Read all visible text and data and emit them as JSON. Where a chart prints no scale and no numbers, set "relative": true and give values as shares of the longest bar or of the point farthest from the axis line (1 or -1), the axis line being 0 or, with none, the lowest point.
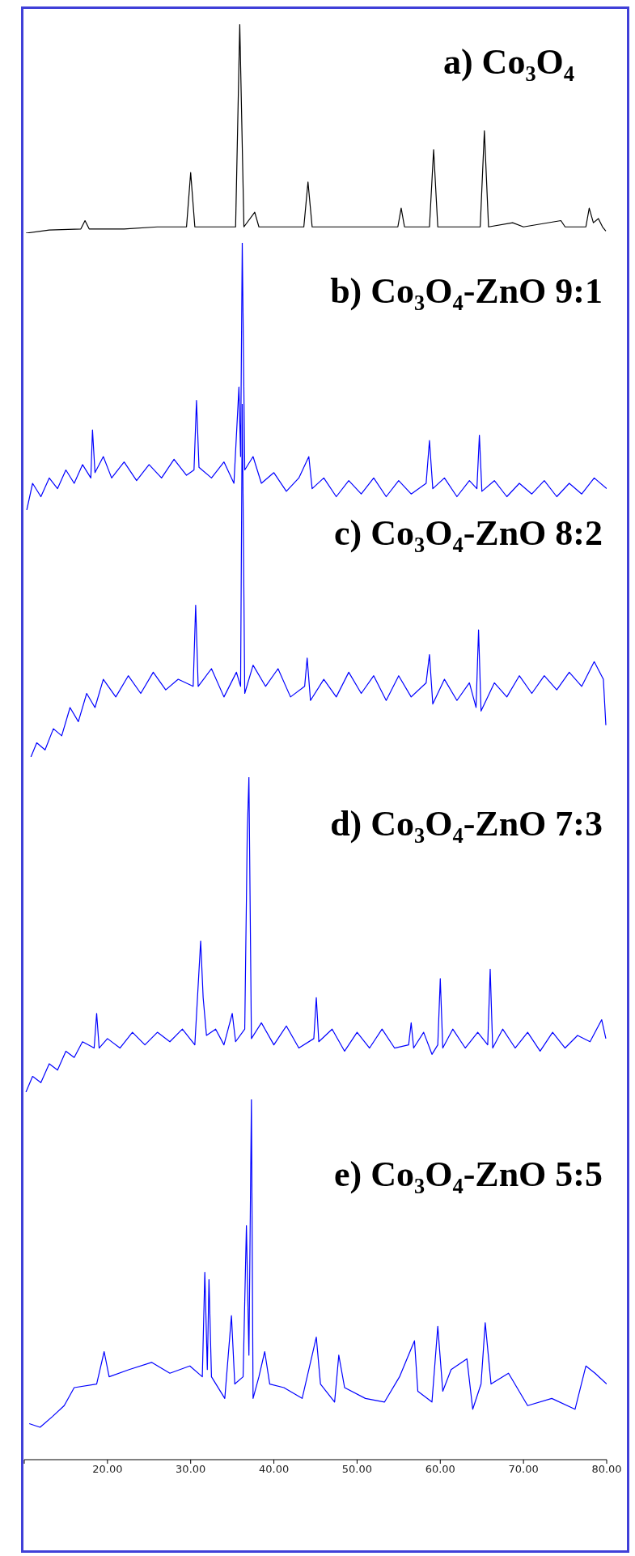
{
  "chart_data": [
    {
      "type": "line",
      "title": "a) Co₃O₄",
      "relative": true,
      "color": "#000000",
      "xlim": [
        10,
        80
      ],
      "tick_labels": false,
      "x": [
        10.2,
        13,
        16.8,
        17.3,
        17.8,
        22,
        26,
        29.5,
        30.0,
        30.5,
        35.4,
        35.9,
        36.4,
        37.7,
        38.2,
        43.6,
        44.1,
        44.6,
        50,
        54.9,
        55.3,
        55.7,
        58.7,
        59.2,
        59.7,
        64.8,
        65.3,
        65.8,
        68.7,
        70,
        74.5,
        75,
        77.5,
        77.9,
        78.4,
        79.0,
        79.5,
        79.9
      ],
      "values": [
        0,
        0.015,
        0.02,
        0.06,
        0.02,
        0.02,
        0.03,
        0.03,
        0.29,
        0.03,
        0.03,
        1,
        0.03,
        0.1,
        0.03,
        0.03,
        0.245,
        0.03,
        0.03,
        0.03,
        0.12,
        0.03,
        0.03,
        0.4,
        0.03,
        0.03,
        0.49,
        0.03,
        0.05,
        0.03,
        0.06,
        0.03,
        0.03,
        0.12,
        0.05,
        0.07,
        0.03,
        0.01
      ]
    },
    {
      "type": "line",
      "title": "b) Co₃O₄-ZnO 9:1",
      "relative": true,
      "color": "#0000ff",
      "xlim": [
        10,
        80
      ],
      "tick_labels": false,
      "x": [
        10.3,
        11,
        12,
        13,
        14,
        15,
        16,
        17,
        18.0,
        18.2,
        18.5,
        19.5,
        20.5,
        22,
        23.5,
        25,
        26.5,
        28,
        29.5,
        30.4,
        30.7,
        31.0,
        32.5,
        34,
        35.2,
        35.8,
        36.0,
        36.2,
        36.5,
        37.5,
        38.5,
        40,
        41.5,
        43,
        44.2,
        44.6,
        46,
        47.5,
        49,
        50.5,
        52,
        53.5,
        55,
        56.5,
        58.3,
        58.7,
        59.1,
        60.5,
        62,
        63.5,
        64.4,
        64.7,
        65,
        66.5,
        68,
        69.5,
        71,
        72.5,
        74,
        75.5,
        77,
        78.5,
        80
      ],
      "values": [
        0,
        0.1,
        0.05,
        0.12,
        0.08,
        0.15,
        0.1,
        0.17,
        0.12,
        0.3,
        0.14,
        0.2,
        0.12,
        0.18,
        0.11,
        0.17,
        0.12,
        0.19,
        0.13,
        0.15,
        0.41,
        0.16,
        0.12,
        0.18,
        0.1,
        0.46,
        0.2,
        1,
        0.15,
        0.2,
        0.1,
        0.14,
        0.07,
        0.12,
        0.2,
        0.08,
        0.12,
        0.05,
        0.11,
        0.06,
        0.12,
        0.05,
        0.11,
        0.06,
        0.1,
        0.26,
        0.08,
        0.12,
        0.05,
        0.11,
        0.08,
        0.28,
        0.07,
        0.11,
        0.05,
        0.1,
        0.06,
        0.11,
        0.05,
        0.1,
        0.06,
        0.12,
        0.08
      ]
    },
    {
      "type": "line",
      "title": "c) Co₃O₄-ZnO 8:2",
      "relative": true,
      "color": "#0000ff",
      "xlim": [
        10,
        80
      ],
      "tick_labels": false,
      "x": [
        10.8,
        11.5,
        12.5,
        13.5,
        14.5,
        15.5,
        16.5,
        17.5,
        18.5,
        19.5,
        21,
        22.5,
        24,
        25.5,
        27,
        28.5,
        30.3,
        30.6,
        30.9,
        32.5,
        34,
        35.5,
        36.0,
        36.2,
        36.5,
        37.5,
        39,
        40.5,
        42,
        43.7,
        44,
        44.4,
        46,
        47.5,
        49,
        50.5,
        52,
        53.5,
        55,
        56.5,
        58.3,
        58.7,
        59.1,
        60.5,
        62,
        63.5,
        64.3,
        64.6,
        64.9,
        66.5,
        68,
        69.5,
        71,
        72.5,
        74,
        75.5,
        77,
        78.5,
        79.6,
        79.9
      ],
      "values": [
        0,
        0.04,
        0.02,
        0.08,
        0.06,
        0.14,
        0.1,
        0.18,
        0.14,
        0.22,
        0.17,
        0.23,
        0.18,
        0.24,
        0.19,
        0.22,
        0.2,
        0.43,
        0.2,
        0.25,
        0.17,
        0.24,
        0.2,
        1,
        0.18,
        0.26,
        0.2,
        0.25,
        0.17,
        0.2,
        0.28,
        0.16,
        0.22,
        0.17,
        0.24,
        0.18,
        0.23,
        0.16,
        0.23,
        0.17,
        0.21,
        0.29,
        0.15,
        0.22,
        0.16,
        0.21,
        0.14,
        0.36,
        0.13,
        0.21,
        0.17,
        0.23,
        0.18,
        0.23,
        0.19,
        0.24,
        0.2,
        0.27,
        0.22,
        0.09
      ]
    },
    {
      "type": "line",
      "title": "d) Co₃O₄-ZnO 7:3",
      "relative": true,
      "color": "#0000ff",
      "xlim": [
        10,
        80
      ],
      "tick_labels": false,
      "x": [
        10.2,
        11,
        12,
        13,
        14,
        15,
        16,
        17,
        18.4,
        18.7,
        19,
        20,
        21.5,
        23,
        24.5,
        26,
        27.5,
        29,
        30.5,
        31.2,
        31.5,
        31.9,
        33,
        34,
        35,
        35.4,
        36.5,
        36.8,
        37.0,
        37.3,
        38.5,
        40,
        41.5,
        43,
        44.8,
        45.1,
        45.4,
        47,
        48.5,
        50,
        51.5,
        53,
        54.5,
        56.2,
        56.5,
        56.8,
        58,
        59,
        59.7,
        60.0,
        60.3,
        61.5,
        63,
        64.5,
        65.7,
        66.0,
        66.3,
        67.5,
        69,
        70.5,
        72,
        73.5,
        75,
        76.5,
        78,
        79.4,
        79.9
      ],
      "values": [
        0,
        0.05,
        0.03,
        0.09,
        0.07,
        0.13,
        0.11,
        0.16,
        0.14,
        0.25,
        0.14,
        0.17,
        0.14,
        0.19,
        0.15,
        0.19,
        0.16,
        0.2,
        0.15,
        0.48,
        0.3,
        0.18,
        0.2,
        0.15,
        0.25,
        0.16,
        0.2,
        0.82,
        1,
        0.17,
        0.22,
        0.15,
        0.21,
        0.14,
        0.17,
        0.3,
        0.16,
        0.2,
        0.13,
        0.19,
        0.14,
        0.2,
        0.14,
        0.15,
        0.22,
        0.14,
        0.19,
        0.12,
        0.15,
        0.36,
        0.14,
        0.2,
        0.14,
        0.19,
        0.15,
        0.39,
        0.14,
        0.2,
        0.14,
        0.19,
        0.13,
        0.19,
        0.14,
        0.18,
        0.16,
        0.23,
        0.17
      ]
    },
    {
      "type": "line",
      "title": "e) Co₃O₄-ZnO 5:5",
      "relative": true,
      "color": "#0000ff",
      "xlim": [
        10,
        80
      ],
      "tick_labels": "x",
      "xticks": [
        {
          "value": 10,
          "label": null
        },
        {
          "value": 20,
          "label": "20.00"
        },
        {
          "value": 30,
          "label": "30.00"
        },
        {
          "value": 40,
          "label": "40.00"
        },
        {
          "value": 50,
          "label": "50.00"
        },
        {
          "value": 60,
          "label": "60.00"
        },
        {
          "value": 70,
          "label": "70.00"
        },
        {
          "value": 80,
          "label": "80.00"
        }
      ],
      "x": [
        10.6,
        11.9,
        13.4,
        14.8,
        16.0,
        18.7,
        19.6,
        20.2,
        22.6,
        25.3,
        27.5,
        29.9,
        31.4,
        31.7,
        32.0,
        32.2,
        32.5,
        34.1,
        34.9,
        35.3,
        36.3,
        36.7,
        37.0,
        37.3,
        37.5,
        38.2,
        38.9,
        39.5,
        41.2,
        43.4,
        45.1,
        45.6,
        47.3,
        47.8,
        48.5,
        51.0,
        53.3,
        55.1,
        56.9,
        57.3,
        59.0,
        59.7,
        60.3,
        61.3,
        63.2,
        63.9,
        64.9,
        65.4,
        66.1,
        68.2,
        70.5,
        73.4,
        76.2,
        77.5,
        78.6,
        80
      ],
      "values": [
        0.1,
        0.09,
        0.12,
        0.15,
        0.2,
        0.21,
        0.3,
        0.23,
        0.25,
        0.27,
        0.24,
        0.26,
        0.23,
        0.52,
        0.25,
        0.5,
        0.23,
        0.17,
        0.4,
        0.21,
        0.23,
        0.65,
        0.29,
        1,
        0.17,
        0.23,
        0.3,
        0.21,
        0.2,
        0.17,
        0.34,
        0.21,
        0.16,
        0.29,
        0.2,
        0.17,
        0.16,
        0.23,
        0.33,
        0.19,
        0.16,
        0.37,
        0.19,
        0.25,
        0.28,
        0.14,
        0.21,
        0.38,
        0.21,
        0.24,
        0.15,
        0.17,
        0.14,
        0.26,
        0.24,
        0.21
      ]
    }
  ]
}
